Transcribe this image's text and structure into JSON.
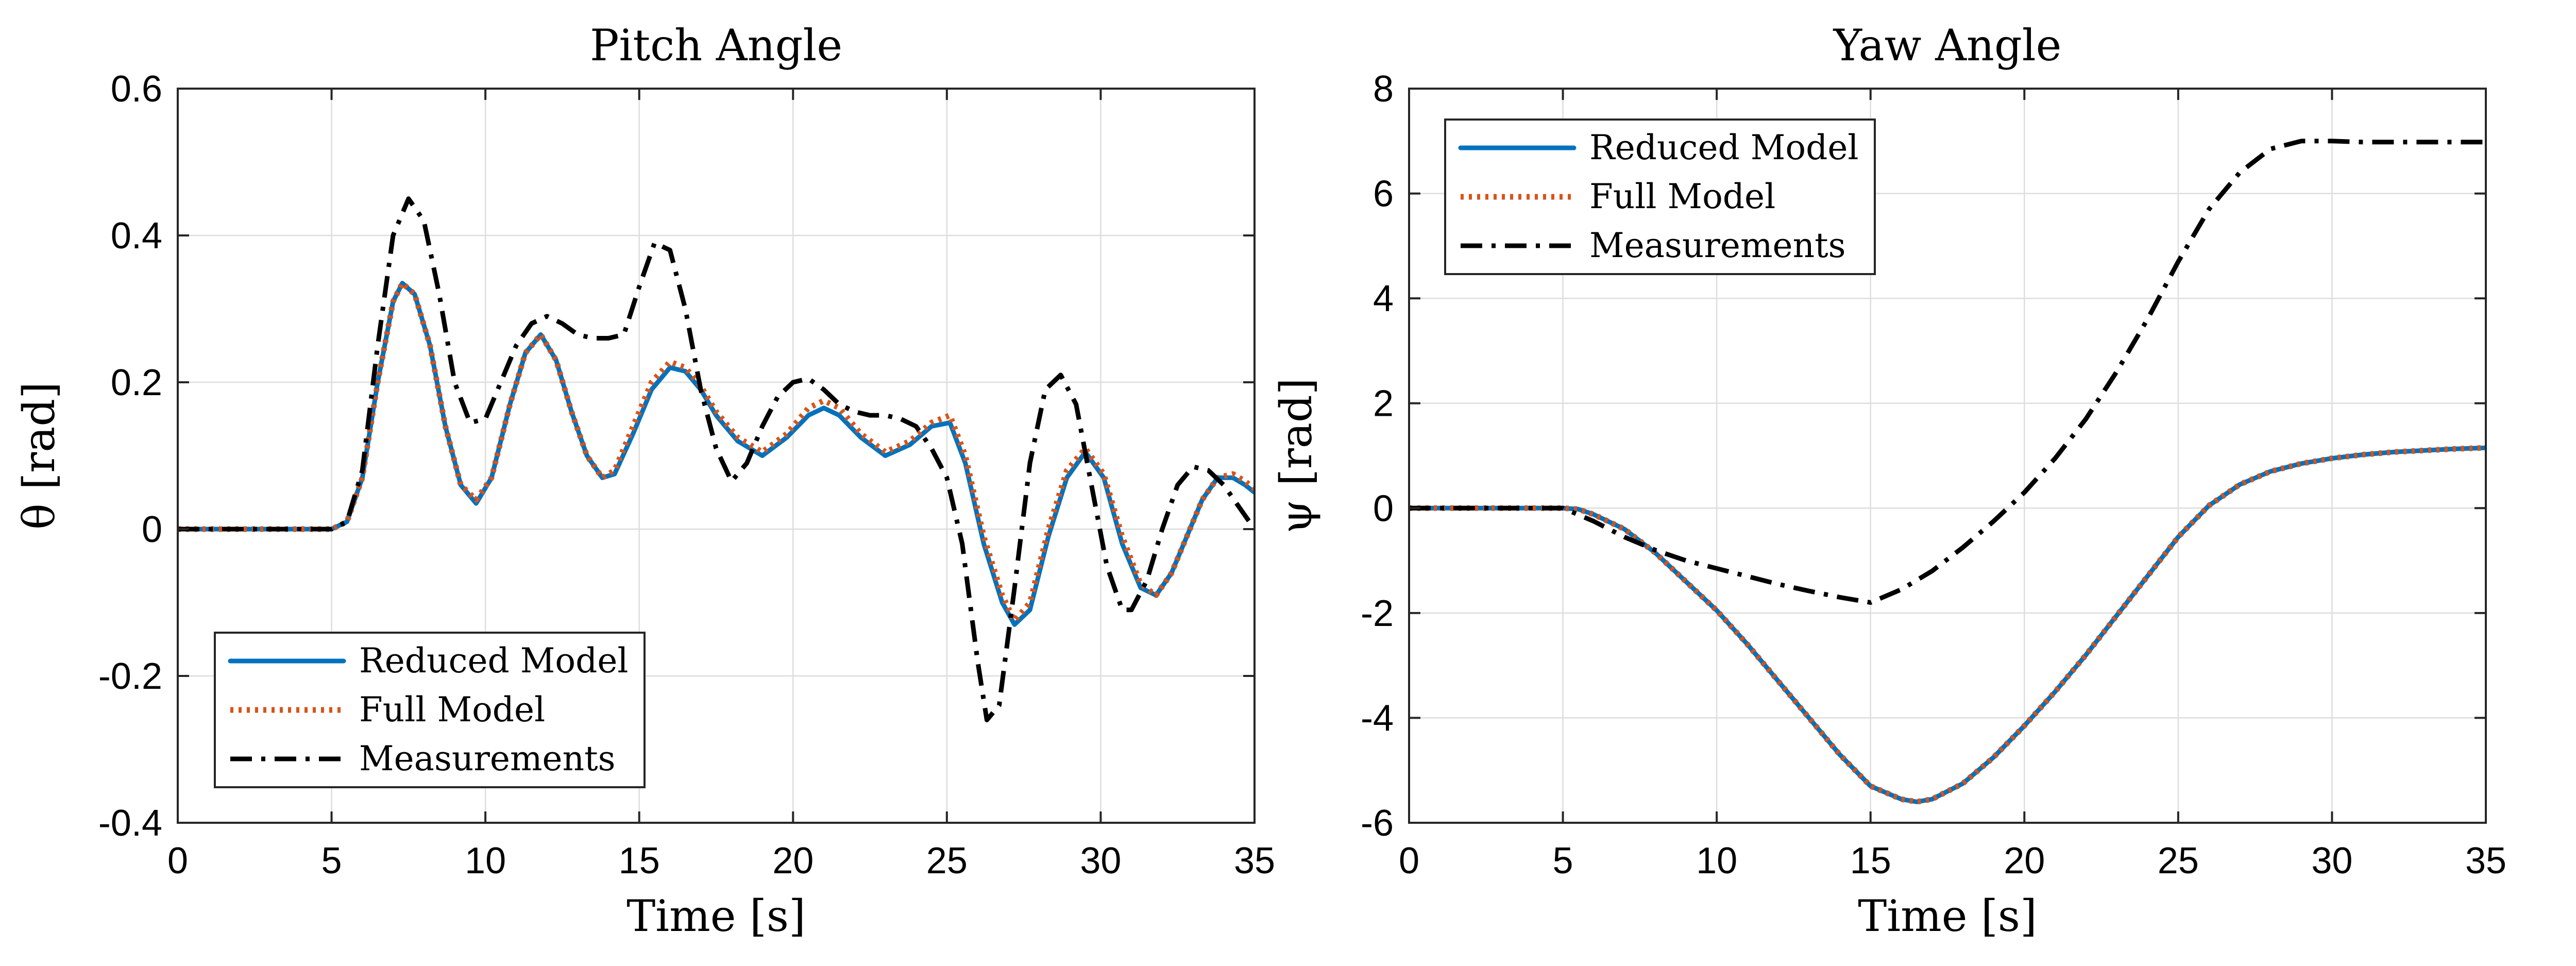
{
  "chart_data": [
    {
      "type": "line",
      "title": "Pitch Angle",
      "xlabel": "Time [s]",
      "ylabel": "θ [rad]",
      "xlim": [
        0,
        35
      ],
      "ylim": [
        -0.4,
        0.6
      ],
      "xticks": [
        "0",
        "5",
        "10",
        "15",
        "20",
        "25",
        "30",
        "35"
      ],
      "yticks": [
        "-0.4",
        "-0.2",
        "0",
        "0.2",
        "0.4",
        "0.6"
      ],
      "grid": true,
      "legend_position": "bottom-left",
      "series": [
        {
          "name": "Reduced Model",
          "color": "#0072BD",
          "style": "solid",
          "x": [
            0,
            5,
            5.5,
            6,
            6.5,
            7,
            7.3,
            7.7,
            8.2,
            8.7,
            9.2,
            9.7,
            10.2,
            10.8,
            11.3,
            11.8,
            12.3,
            12.8,
            13.3,
            13.8,
            14.2,
            14.8,
            15.4,
            16.0,
            16.5,
            17.0,
            17.5,
            18.2,
            19.0,
            19.8,
            20.5,
            21.0,
            21.5,
            22.2,
            23.0,
            23.8,
            24.5,
            25.1,
            25.6,
            26.2,
            26.8,
            27.2,
            27.7,
            28.3,
            28.9,
            29.5,
            30.1,
            30.7,
            31.3,
            31.8,
            32.3,
            32.8,
            33.3,
            33.8,
            34.3,
            34.7,
            35
          ],
          "values": [
            0,
            0,
            0.01,
            0.07,
            0.2,
            0.31,
            0.335,
            0.32,
            0.25,
            0.14,
            0.06,
            0.035,
            0.07,
            0.17,
            0.24,
            0.265,
            0.23,
            0.16,
            0.1,
            0.07,
            0.075,
            0.13,
            0.19,
            0.22,
            0.215,
            0.19,
            0.155,
            0.12,
            0.1,
            0.125,
            0.155,
            0.165,
            0.155,
            0.125,
            0.1,
            0.115,
            0.14,
            0.145,
            0.09,
            -0.02,
            -0.1,
            -0.13,
            -0.11,
            -0.01,
            0.07,
            0.105,
            0.07,
            -0.02,
            -0.08,
            -0.09,
            -0.06,
            -0.01,
            0.04,
            0.07,
            0.07,
            0.06,
            0.05
          ]
        },
        {
          "name": "Full Model",
          "color": "#D95319",
          "style": "dotted",
          "x": [
            0,
            5,
            5.5,
            6,
            6.5,
            7,
            7.3,
            7.7,
            8.2,
            8.7,
            9.2,
            9.7,
            10.2,
            10.8,
            11.3,
            11.8,
            12.3,
            12.8,
            13.3,
            13.8,
            14.2,
            14.8,
            15.4,
            16.0,
            16.5,
            17.0,
            17.5,
            18.2,
            19.0,
            19.8,
            20.5,
            21.0,
            21.5,
            22.2,
            23.0,
            23.8,
            24.5,
            25.1,
            25.6,
            26.2,
            26.8,
            27.2,
            27.7,
            28.3,
            28.9,
            29.5,
            30.1,
            30.7,
            31.3,
            31.8,
            32.3,
            32.8,
            33.3,
            33.8,
            34.3,
            34.7,
            35
          ],
          "values": [
            0,
            0,
            0.01,
            0.07,
            0.2,
            0.31,
            0.335,
            0.32,
            0.25,
            0.14,
            0.06,
            0.04,
            0.07,
            0.17,
            0.24,
            0.265,
            0.23,
            0.16,
            0.1,
            0.07,
            0.08,
            0.14,
            0.2,
            0.228,
            0.22,
            0.195,
            0.16,
            0.125,
            0.105,
            0.13,
            0.165,
            0.175,
            0.165,
            0.13,
            0.105,
            0.12,
            0.145,
            0.155,
            0.1,
            -0.01,
            -0.09,
            -0.125,
            -0.1,
            0.0,
            0.08,
            0.11,
            0.075,
            -0.01,
            -0.075,
            -0.09,
            -0.06,
            -0.01,
            0.04,
            0.07,
            0.075,
            0.065,
            0.055
          ]
        },
        {
          "name": "Measurements",
          "color": "#000000",
          "style": "dashdot",
          "x": [
            0,
            5,
            5.5,
            6,
            6.5,
            7,
            7.5,
            8.0,
            8.5,
            9.0,
            9.5,
            10.0,
            10.5,
            11.0,
            11.5,
            12.0,
            12.5,
            13.0,
            13.5,
            14.0,
            14.5,
            15.0,
            15.5,
            16.0,
            16.5,
            17.0,
            17.5,
            18.0,
            18.5,
            19.0,
            19.5,
            20.0,
            20.5,
            21.0,
            21.5,
            22.0,
            22.5,
            23.0,
            23.5,
            24.0,
            24.5,
            25.0,
            25.5,
            26.0,
            26.3,
            26.7,
            27.2,
            27.7,
            28.2,
            28.7,
            29.2,
            29.7,
            30.2,
            30.7,
            31.0,
            31.5,
            32.0,
            32.5,
            33.0,
            33.5,
            34.0,
            34.5,
            35
          ],
          "values": [
            0,
            0,
            0.01,
            0.08,
            0.25,
            0.4,
            0.45,
            0.42,
            0.32,
            0.2,
            0.145,
            0.15,
            0.2,
            0.25,
            0.28,
            0.29,
            0.28,
            0.265,
            0.26,
            0.26,
            0.265,
            0.33,
            0.39,
            0.38,
            0.3,
            0.19,
            0.11,
            0.065,
            0.09,
            0.14,
            0.18,
            0.2,
            0.205,
            0.19,
            0.17,
            0.16,
            0.155,
            0.155,
            0.15,
            0.14,
            0.11,
            0.07,
            -0.02,
            -0.18,
            -0.26,
            -0.24,
            -0.08,
            0.09,
            0.19,
            0.21,
            0.17,
            0.06,
            -0.05,
            -0.11,
            -0.11,
            -0.07,
            0.0,
            0.06,
            0.085,
            0.08,
            0.06,
            0.03,
            0.0
          ]
        }
      ]
    },
    {
      "type": "line",
      "title": "Yaw Angle",
      "xlabel": "Time [s]",
      "ylabel": "ψ [rad]",
      "xlim": [
        0,
        35
      ],
      "ylim": [
        -6,
        8
      ],
      "xticks": [
        "0",
        "5",
        "10",
        "15",
        "20",
        "25",
        "30",
        "35"
      ],
      "yticks": [
        "-6",
        "-4",
        "-2",
        "0",
        "2",
        "4",
        "6",
        "8"
      ],
      "grid": true,
      "legend_position": "top-left",
      "series": [
        {
          "name": "Reduced Model",
          "color": "#0072BD",
          "style": "solid",
          "x": [
            0,
            5,
            5.5,
            6,
            7,
            8,
            9,
            10,
            11,
            12,
            13,
            14,
            15,
            16,
            16.5,
            17,
            18,
            19,
            20,
            21,
            22,
            23,
            24,
            25,
            26,
            27,
            28,
            29,
            30,
            31,
            32,
            33,
            34,
            35
          ],
          "values": [
            0,
            0,
            -0.02,
            -0.12,
            -0.4,
            -0.85,
            -1.4,
            -1.95,
            -2.6,
            -3.3,
            -4.0,
            -4.7,
            -5.3,
            -5.55,
            -5.6,
            -5.55,
            -5.25,
            -4.75,
            -4.15,
            -3.5,
            -2.8,
            -2.05,
            -1.3,
            -0.55,
            0.05,
            0.45,
            0.7,
            0.85,
            0.95,
            1.02,
            1.07,
            1.1,
            1.13,
            1.15
          ]
        },
        {
          "name": "Full Model",
          "color": "#D95319",
          "style": "dotted",
          "x": [
            0,
            5,
            5.5,
            6,
            7,
            8,
            9,
            10,
            11,
            12,
            13,
            14,
            15,
            16,
            16.5,
            17,
            18,
            19,
            20,
            21,
            22,
            23,
            24,
            25,
            26,
            27,
            28,
            29,
            30,
            31,
            32,
            33,
            34,
            35
          ],
          "values": [
            0,
            0,
            -0.02,
            -0.12,
            -0.4,
            -0.85,
            -1.4,
            -1.95,
            -2.6,
            -3.3,
            -4.0,
            -4.7,
            -5.3,
            -5.55,
            -5.6,
            -5.55,
            -5.25,
            -4.75,
            -4.15,
            -3.5,
            -2.8,
            -2.05,
            -1.3,
            -0.55,
            0.05,
            0.45,
            0.7,
            0.85,
            0.95,
            1.02,
            1.07,
            1.1,
            1.13,
            1.15
          ]
        },
        {
          "name": "Measurements",
          "color": "#000000",
          "style": "dashdot",
          "x": [
            0,
            5,
            6,
            7,
            8,
            9,
            10,
            11,
            12,
            13,
            14,
            15,
            16,
            17,
            18,
            19,
            20,
            21,
            22,
            23,
            24,
            25,
            26,
            27,
            28,
            29,
            30,
            31,
            32,
            33,
            34,
            35
          ],
          "values": [
            0,
            0,
            -0.25,
            -0.55,
            -0.8,
            -1.0,
            -1.15,
            -1.3,
            -1.45,
            -1.58,
            -1.7,
            -1.8,
            -1.55,
            -1.2,
            -0.75,
            -0.25,
            0.3,
            0.95,
            1.7,
            2.6,
            3.6,
            4.7,
            5.7,
            6.4,
            6.85,
            7.0,
            7.0,
            6.98,
            6.98,
            6.98,
            6.98,
            6.98
          ]
        }
      ]
    }
  ]
}
